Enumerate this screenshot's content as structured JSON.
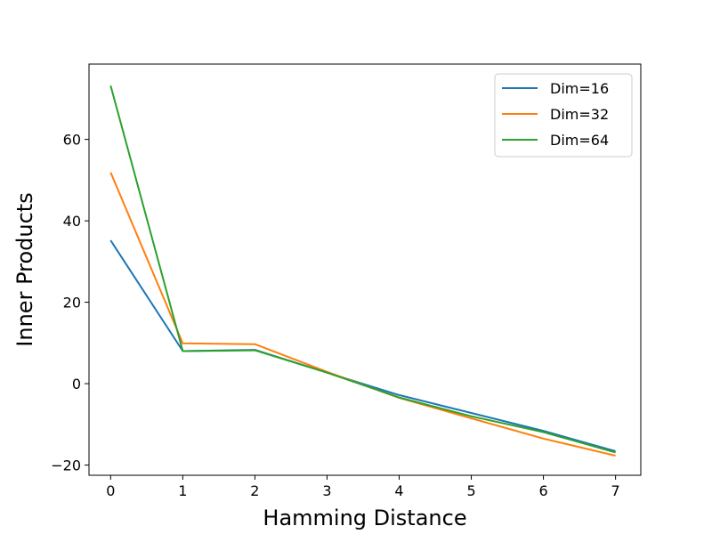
{
  "chart_data": {
    "type": "line",
    "title": "",
    "xlabel": "Hamming Distance",
    "ylabel": "Inner Products",
    "x": [
      0,
      1,
      2,
      3,
      4,
      5,
      6,
      7
    ],
    "xlim": [
      -0.3,
      7.35
    ],
    "ylim": [
      -22.5,
      78.5
    ],
    "xticks": [
      0,
      1,
      2,
      3,
      4,
      5,
      6,
      7
    ],
    "yticks": [
      -20,
      0,
      20,
      40,
      60
    ],
    "ytick_labels": [
      "−20",
      "0",
      "20",
      "40",
      "60"
    ],
    "grid": false,
    "legend_position": "top-right",
    "series": [
      {
        "name": "Dim=16",
        "color": "#1f77b4",
        "values": [
          35.2,
          8.0,
          8.3,
          2.7,
          -2.8,
          -7.2,
          -11.6,
          -16.6
        ]
      },
      {
        "name": "Dim=32",
        "color": "#ff7f0e",
        "values": [
          51.9,
          9.9,
          9.7,
          2.9,
          -3.5,
          -8.5,
          -13.5,
          -17.7
        ]
      },
      {
        "name": "Dim=64",
        "color": "#2ca02c",
        "values": [
          73.2,
          8.0,
          8.2,
          2.7,
          -3.4,
          -8.0,
          -11.9,
          -16.9
        ]
      }
    ]
  }
}
